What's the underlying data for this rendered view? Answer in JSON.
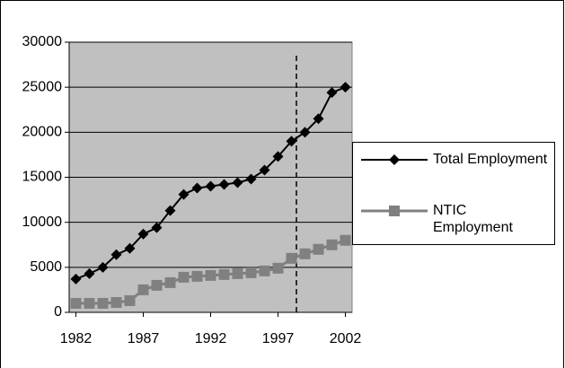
{
  "chart_data": {
    "type": "line",
    "x": [
      1982,
      1983,
      1984,
      1985,
      1986,
      1987,
      1988,
      1989,
      1990,
      1991,
      1992,
      1993,
      1994,
      1995,
      1996,
      1997,
      1998,
      1999,
      2000,
      2001,
      2002
    ],
    "xlim": [
      1981.5,
      2002.5
    ],
    "xticks": [
      1982,
      1987,
      1992,
      1997,
      2002
    ],
    "ylim": [
      0,
      30000
    ],
    "yticks": [
      0,
      5000,
      10000,
      15000,
      20000,
      25000,
      30000
    ],
    "grid": true,
    "legend": "right",
    "series": [
      {
        "name": "Total Employment",
        "color": "#000000",
        "marker": "diamond",
        "values": [
          3700,
          4300,
          5000,
          6400,
          7100,
          8700,
          9400,
          11300,
          13100,
          13800,
          14000,
          14200,
          14400,
          14800,
          15800,
          17300,
          19000,
          20000,
          21500,
          24400,
          25000
        ]
      },
      {
        "name": "NTIC Employment",
        "color": "#808080",
        "marker": "square",
        "values": [
          1000,
          1000,
          1000,
          1100,
          1300,
          2500,
          3000,
          3300,
          3900,
          4000,
          4100,
          4200,
          4300,
          4400,
          4600,
          4900,
          6000,
          6500,
          7000,
          7500,
          8000
        ]
      }
    ]
  }
}
